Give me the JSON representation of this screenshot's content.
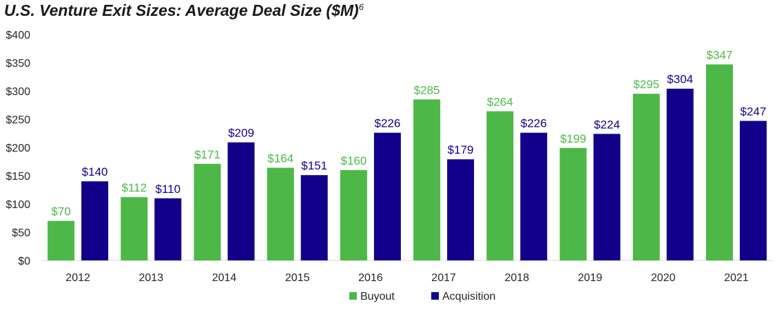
{
  "chart_data": {
    "type": "bar",
    "title": "U.S. Venture Exit Sizes: Average Deal Size ($M)",
    "title_superscript": "6",
    "categories": [
      "2012",
      "2013",
      "2014",
      "2015",
      "2016",
      "2017",
      "2018",
      "2019",
      "2020",
      "2021"
    ],
    "series": [
      {
        "name": "Buyout",
        "color": "#4db848",
        "values": [
          70,
          112,
          171,
          164,
          160,
          285,
          264,
          199,
          295,
          347
        ],
        "labels": [
          "$70",
          "$112",
          "$171",
          "$164",
          "$160",
          "$285",
          "$264",
          "$199",
          "$295",
          "$347"
        ]
      },
      {
        "name": "Acquisition",
        "color": "#12008a",
        "values": [
          140,
          110,
          209,
          151,
          226,
          179,
          226,
          224,
          304,
          247
        ],
        "labels": [
          "$140",
          "$110",
          "$209",
          "$151",
          "$226",
          "$179",
          "$226",
          "$224",
          "$304",
          "$247"
        ]
      }
    ],
    "ylim": [
      0,
      400
    ],
    "yticks": [
      0,
      50,
      100,
      150,
      200,
      250,
      300,
      350,
      400
    ],
    "ytick_labels": [
      "$0",
      "$50",
      "$100",
      "$150",
      "$200",
      "$250",
      "$300",
      "$350",
      "$400"
    ],
    "xlabel": "",
    "ylabel": "",
    "grid": false,
    "legend_position": "bottom-center"
  }
}
